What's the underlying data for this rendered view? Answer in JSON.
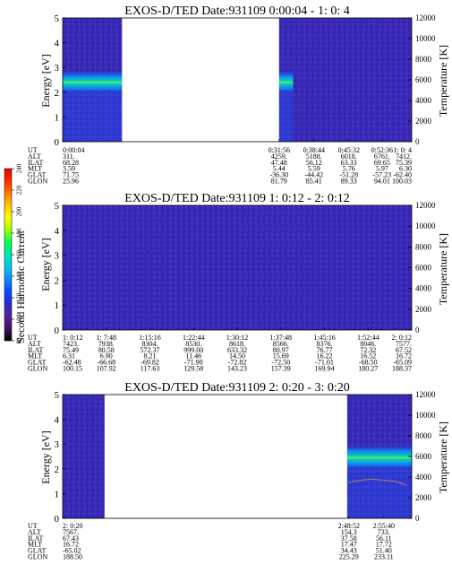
{
  "panels": [
    {
      "title": "EXOS-D/TED   Date:931109  0:00:04 - 1: 0: 4",
      "ylabel": "Energy [eV]",
      "y2label": "Temperature [K]",
      "yticks": [
        "0",
        "1",
        "2",
        "3",
        "4",
        "5"
      ],
      "y2ticks": [
        "0",
        "2000",
        "4000",
        "6000",
        "8000",
        "10000",
        "12000"
      ],
      "gaps": [
        [
          0.17,
          0.62
        ]
      ],
      "band": {
        "center": 2.4,
        "width": 0.5,
        "segments": [
          [
            0,
            0.17
          ],
          [
            0.62,
            0.66
          ]
        ]
      },
      "ephem": {
        "labels": [
          "UT",
          "ALT",
          "ILAT",
          "MLT",
          "GLAT",
          "GLON"
        ],
        "columns": [
          {
            "pos": 0.0,
            "values": [
              "0:00:04",
              "311.",
              "68.28",
              "3.59",
              "71.75",
              "25.96"
            ]
          },
          {
            "pos": 0.62,
            "values": [
              "0:31:56",
              "4259.",
              "47.48",
              "5.44",
              "-36.30",
              "81.79"
            ]
          },
          {
            "pos": 0.72,
            "values": [
              "0:38:44",
              "5188.",
              "56.12",
              "5.59",
              "-44.42",
              "85.41"
            ]
          },
          {
            "pos": 0.82,
            "values": [
              "0:45:32",
              "6018.",
              "63.33",
              "5.76",
              "-51.28",
              "89.33"
            ]
          },
          {
            "pos": 0.915,
            "values": [
              "0:52:36",
              "6761.",
              "69.65",
              "5.97",
              "-57.23",
              "94.01"
            ]
          },
          {
            "pos": 1.0,
            "values": [
              "1: 0: 4",
              "7412.",
              "75.39",
              "6.30",
              "-62.40",
              "100.03"
            ]
          }
        ]
      }
    },
    {
      "title": "EXOS-D/TED   Date:931109  1: 0:12 - 2: 0:12",
      "ylabel": "Energy [eV]",
      "y2label": "Temperature [K]",
      "yticks": [
        "0",
        "1",
        "2",
        "3",
        "4",
        "5"
      ],
      "y2ticks": [
        "0",
        "2000",
        "4000",
        "6000",
        "8000",
        "10000",
        "12000"
      ],
      "gaps": [],
      "band": null,
      "ephem": {
        "labels": [
          "UT",
          "ALT",
          "ILAT",
          "MLT",
          "GLAT",
          "GLON"
        ],
        "columns": [
          {
            "pos": 0.0,
            "values": [
              "1: 0:12",
              "7423.",
              "75.49",
              "6.31",
              "-62.48",
              "100.15"
            ]
          },
          {
            "pos": 0.125,
            "values": [
              "1: 7:48",
              "7938.",
              "80.58",
              "6.90",
              "-66.68",
              "107.92"
            ]
          },
          {
            "pos": 0.25,
            "values": [
              "1:15:16",
              "8304.",
              "572.37",
              "8.21",
              "-69.82",
              "117.63"
            ]
          },
          {
            "pos": 0.375,
            "values": [
              "1:22:44",
              "8530.",
              "999.00",
              "11.46",
              "-71.90",
              "129.58"
            ]
          },
          {
            "pos": 0.5,
            "values": [
              "1:30:12",
              "8618.",
              "633.32",
              "14.50",
              "-72.82",
              "143.23"
            ]
          },
          {
            "pos": 0.625,
            "values": [
              "1:37:48",
              "8566.",
              "80.97",
              "15.69",
              "-72.50",
              "157.39"
            ]
          },
          {
            "pos": 0.75,
            "values": [
              "1:45:16",
              "8376.",
              "76.77",
              "16.22",
              "-71.01",
              "169.94"
            ]
          },
          {
            "pos": 0.875,
            "values": [
              "1:52:44",
              "8046.",
              "72.32",
              "16.52",
              "-68.50",
              "180.27"
            ]
          },
          {
            "pos": 1.0,
            "values": [
              "2: 0:12",
              "7577.",
              "67.52",
              "16.72",
              "-65.09",
              "188.37"
            ]
          }
        ]
      }
    },
    {
      "title": "EXOS-D/TED   Date:931109  2: 0:20 - 3: 0:20",
      "ylabel": "Energy [eV]",
      "y2label": "Temperature [K]",
      "yticks": [
        "0",
        "1",
        "2",
        "3",
        "4",
        "5"
      ],
      "y2ticks": [
        "0",
        "2000",
        "4000",
        "6000",
        "8000",
        "10000",
        "12000"
      ],
      "gaps": [
        [
          0.12,
          0.815
        ]
      ],
      "band": {
        "center": 2.45,
        "width": 0.55,
        "segments": [
          [
            0.815,
            1.0
          ]
        ]
      },
      "ephem": {
        "labels": [
          "UT",
          "ALT",
          "ILAT",
          "MLT",
          "GLAT",
          "GLON"
        ],
        "columns": [
          {
            "pos": 0.0,
            "values": [
              "2: 0:20",
              "7567.",
              "67.43",
              "16.72",
              "-65.02",
              "188.50"
            ]
          },
          {
            "pos": 0.82,
            "values": [
              "2:48:52",
              "154.3",
              "37.58",
              "17.47",
              "34.43",
              "225.29"
            ]
          },
          {
            "pos": 0.92,
            "values": [
              "2:55:40",
              "733.",
              "56.11",
              "17.72",
              "51.40",
              "233.11"
            ]
          }
        ]
      }
    }
  ],
  "colorbar": {
    "label": "Second Harmonic Current",
    "ticks": [
      "80",
      "100",
      "120",
      "140",
      "160",
      "180",
      "200",
      "220",
      "240"
    ],
    "colors": [
      "#000000",
      "#3c1466",
      "#5a1e9a",
      "#2b2ccf",
      "#0a46ff",
      "#0a8cff",
      "#00c8e6",
      "#00e6b4",
      "#00ff50",
      "#a0ff00",
      "#ffff00",
      "#ffc800",
      "#ff7800",
      "#ff2800",
      "#e60000"
    ]
  },
  "chart_data": [
    {
      "type": "heatmap",
      "title": "EXOS-D/TED   Date:931109  0:00:04 - 1: 0: 4",
      "xlabel": "UT",
      "ylabel": "Energy [eV]",
      "y2label": "Temperature [K]",
      "ylim": [
        0,
        5
      ],
      "y2lim": [
        0,
        12000
      ],
      "x_ticks": [
        "0:00:04",
        "0:31:56",
        "0:38:44",
        "0:45:32",
        "0:52:36",
        "1: 0: 4"
      ],
      "data_gap": [
        "~0:10",
        "0:31:56"
      ],
      "dominant_band_eV": 2.4
    },
    {
      "type": "heatmap",
      "title": "EXOS-D/TED   Date:931109  1: 0:12 - 2: 0:12",
      "xlabel": "UT",
      "ylabel": "Energy [eV]",
      "y2label": "Temperature [K]",
      "ylim": [
        0,
        5
      ],
      "y2lim": [
        0,
        12000
      ],
      "x_ticks": [
        "1: 0:12",
        "1: 7:48",
        "1:15:16",
        "1:22:44",
        "1:30:12",
        "1:37:48",
        "1:45:16",
        "1:52:44",
        "2: 0:12"
      ],
      "colorbar": {
        "label": "Second Harmonic Current",
        "range": [
          80,
          240
        ]
      }
    },
    {
      "type": "heatmap",
      "title": "EXOS-D/TED   Date:931109  2: 0:20 - 3: 0:20",
      "xlabel": "UT",
      "ylabel": "Energy [eV]",
      "y2label": "Temperature [K]",
      "ylim": [
        0,
        5
      ],
      "y2lim": [
        0,
        12000
      ],
      "x_ticks": [
        "2: 0:20",
        "2:48:52",
        "2:55:40"
      ],
      "data_gap": [
        "~2:07",
        "2:48:52"
      ],
      "dominant_band_eV": 2.45,
      "temperature_trace_K": [
        3500,
        3700,
        3800,
        3700,
        3600,
        3200
      ]
    }
  ]
}
